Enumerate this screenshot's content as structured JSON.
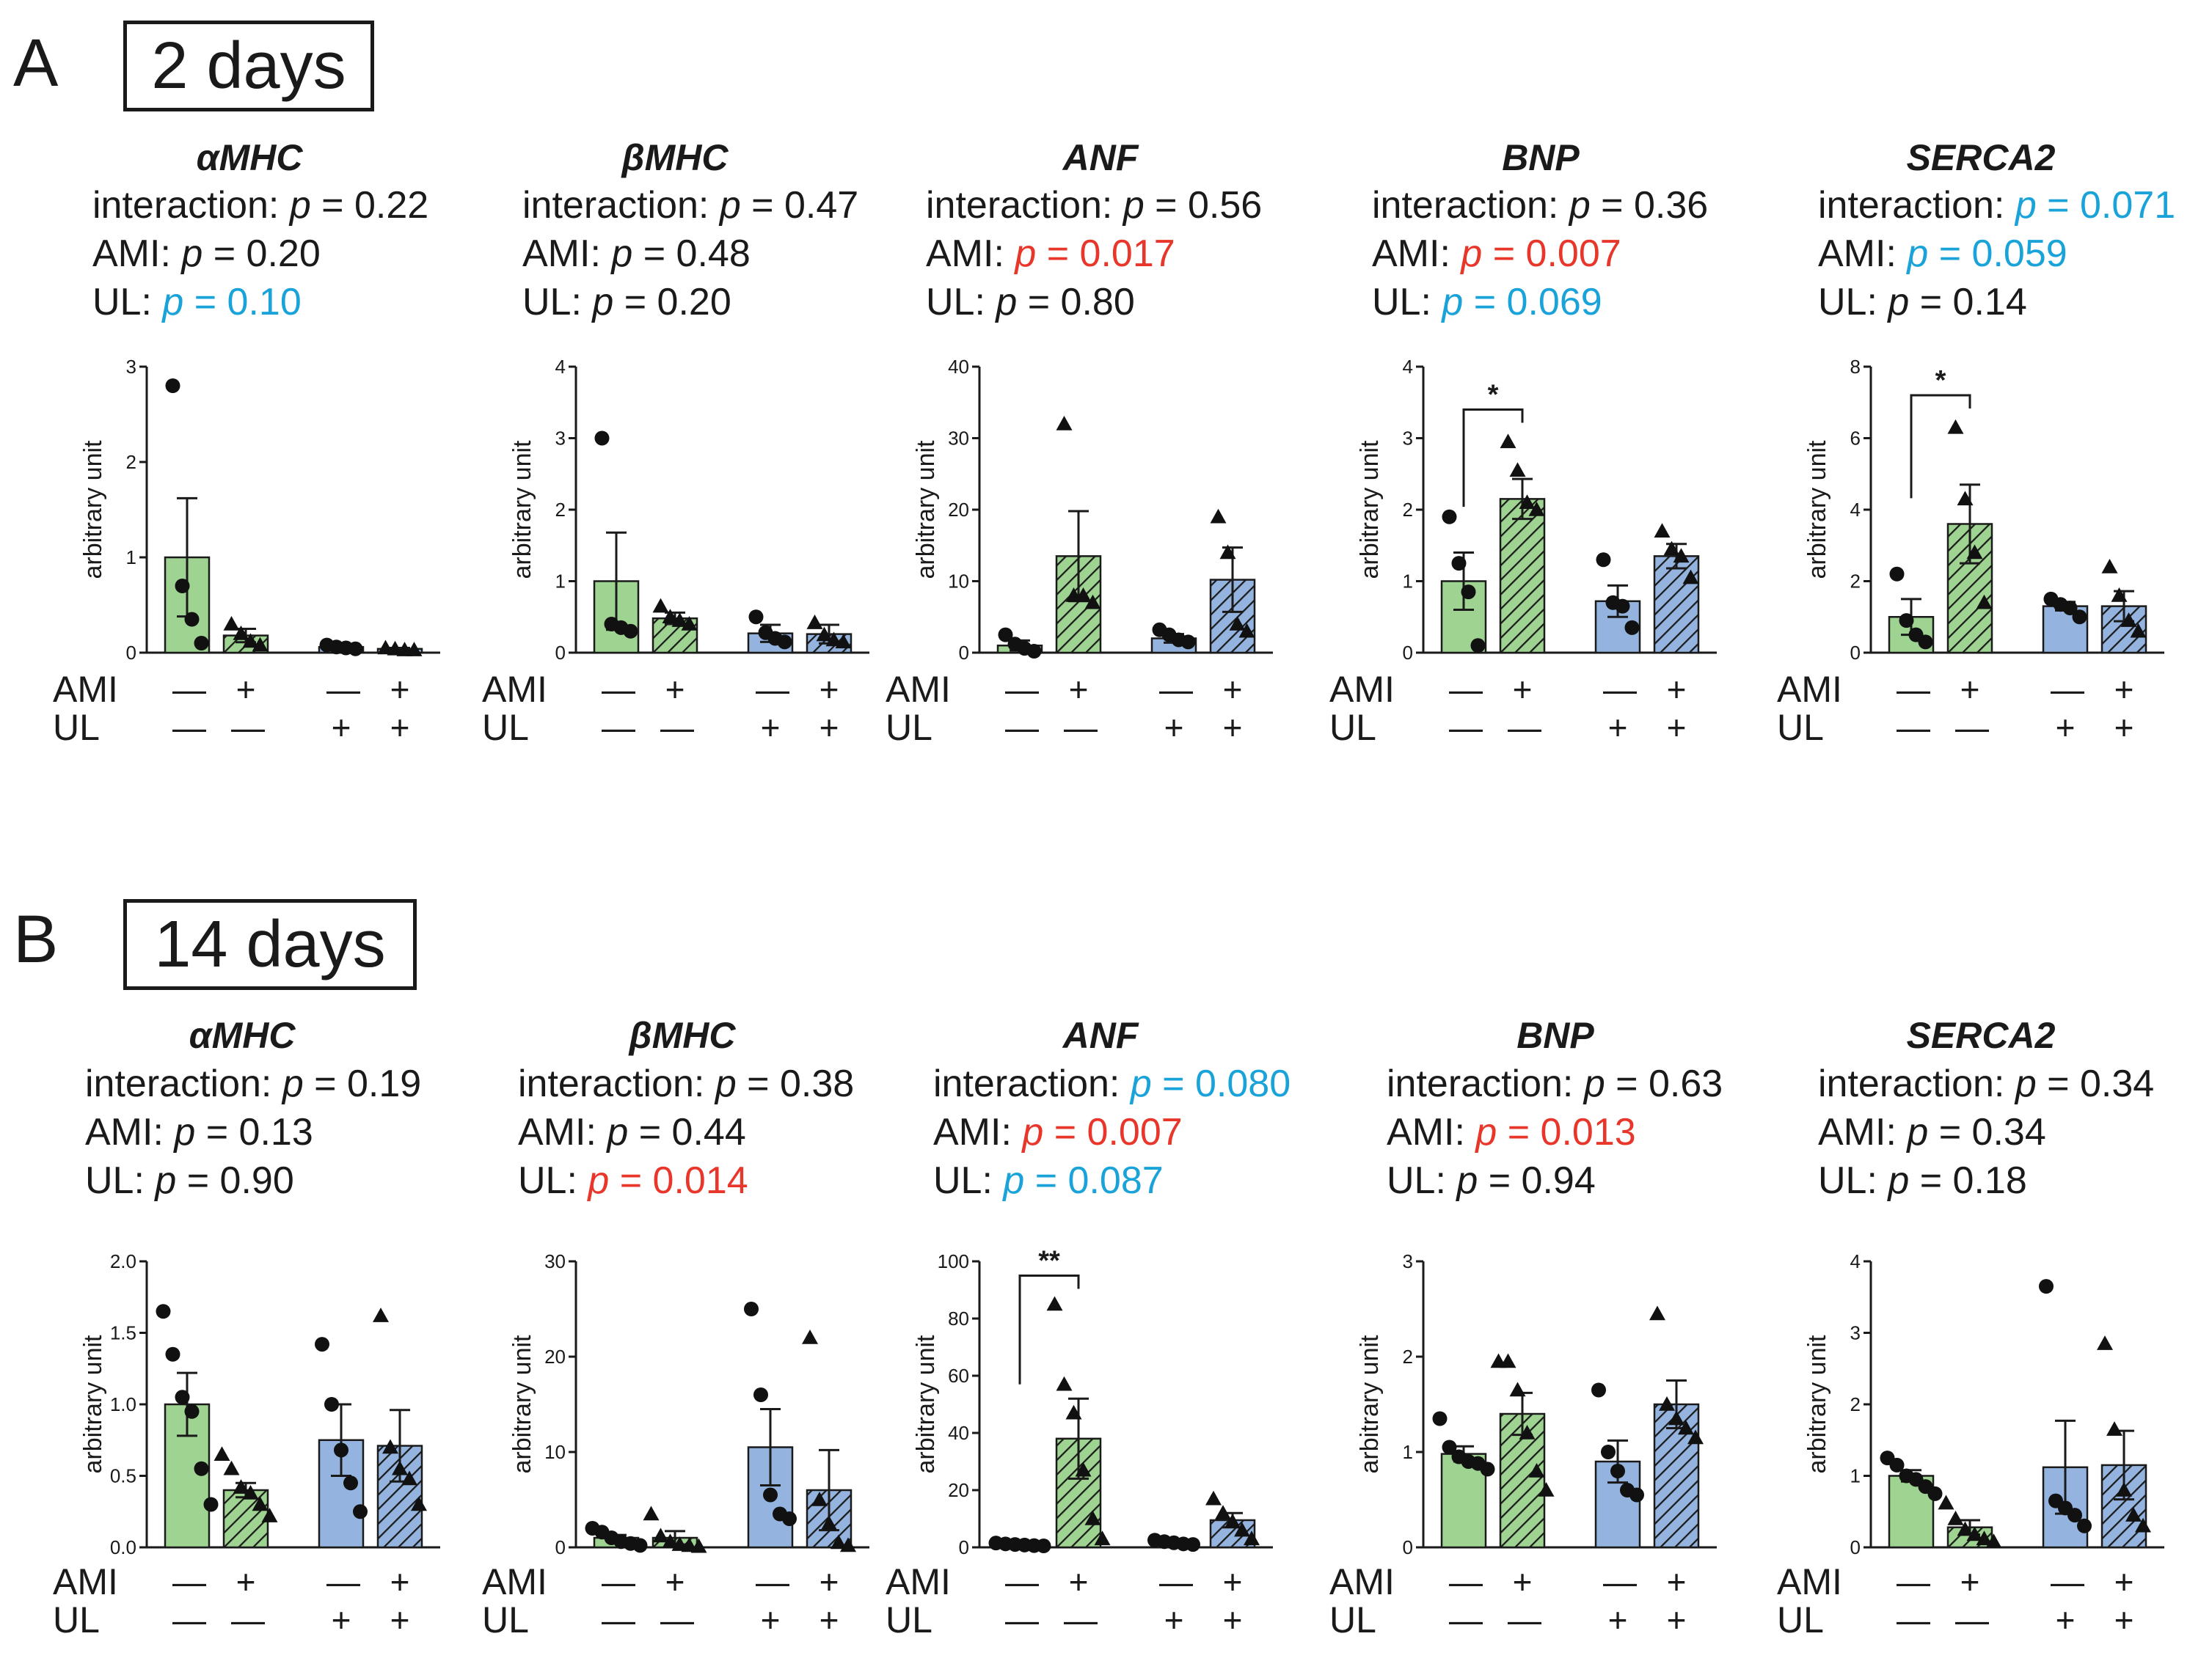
{
  "colors": {
    "green": "#9fd391",
    "blue": "#94b4df",
    "axis": "#1a1a1a",
    "red": "#e8372a",
    "cyan": "#1aa3d9"
  },
  "factor_labels": {
    "ami": "AMI",
    "ul": "UL"
  },
  "signs": {
    "ami": [
      "—",
      "+",
      "—",
      "+"
    ],
    "ul": [
      "—",
      "—",
      "+",
      "+"
    ]
  },
  "panels": [
    {
      "letter": "A",
      "title": "2 days",
      "charts": [
        {
          "gene": "αMHC",
          "stats": [
            {
              "label": "interaction:",
              "p": "p = 0.22",
              "sig": "none"
            },
            {
              "label": "AMI:",
              "p": "p = 0.20",
              "sig": "none"
            },
            {
              "label": "UL:",
              "p": "p = 0.10",
              "sig": "trend"
            }
          ]
        },
        {
          "gene": "βMHC",
          "stats": [
            {
              "label": "interaction:",
              "p": "p = 0.47",
              "sig": "none"
            },
            {
              "label": "AMI:",
              "p": "p = 0.48",
              "sig": "none"
            },
            {
              "label": "UL:",
              "p": "p = 0.20",
              "sig": "none"
            }
          ]
        },
        {
          "gene": "ANF",
          "stats": [
            {
              "label": "interaction:",
              "p": "p = 0.56",
              "sig": "none"
            },
            {
              "label": "AMI:",
              "p": "p = 0.017",
              "sig": "significant"
            },
            {
              "label": "UL:",
              "p": "p = 0.80",
              "sig": "none"
            }
          ]
        },
        {
          "gene": "BNP",
          "stats": [
            {
              "label": "interaction:",
              "p": "p = 0.36",
              "sig": "none"
            },
            {
              "label": "AMI:",
              "p": "p = 0.007",
              "sig": "significant"
            },
            {
              "label": "UL:",
              "p": "p = 0.069",
              "sig": "trend"
            }
          ]
        },
        {
          "gene": "SERCA2",
          "stats": [
            {
              "label": "interaction:",
              "p": "p = 0.071",
              "sig": "trend"
            },
            {
              "label": "AMI:",
              "p": "p = 0.059",
              "sig": "trend"
            },
            {
              "label": "UL:",
              "p": "p = 0.14",
              "sig": "none"
            }
          ]
        }
      ]
    },
    {
      "letter": "B",
      "title": "14 days",
      "charts": [
        {
          "gene": "αMHC",
          "stats": [
            {
              "label": "interaction:",
              "p": "p = 0.19",
              "sig": "none"
            },
            {
              "label": "AMI:",
              "p": "p = 0.13",
              "sig": "none"
            },
            {
              "label": "UL:",
              "p": "p = 0.90",
              "sig": "none"
            }
          ]
        },
        {
          "gene": "βMHC",
          "stats": [
            {
              "label": "interaction:",
              "p": "p = 0.38",
              "sig": "none"
            },
            {
              "label": "AMI:",
              "p": "p = 0.44",
              "sig": "none"
            },
            {
              "label": "UL:",
              "p": "p = 0.014",
              "sig": "significant"
            }
          ]
        },
        {
          "gene": "ANF",
          "stats": [
            {
              "label": "interaction:",
              "p": "p = 0.080",
              "sig": "trend"
            },
            {
              "label": "AMI:",
              "p": "p = 0.007",
              "sig": "significant"
            },
            {
              "label": "UL:",
              "p": "p = 0.087",
              "sig": "trend"
            }
          ]
        },
        {
          "gene": "BNP",
          "stats": [
            {
              "label": "interaction:",
              "p": "p = 0.63",
              "sig": "none"
            },
            {
              "label": "AMI:",
              "p": "p = 0.013",
              "sig": "significant"
            },
            {
              "label": "UL:",
              "p": "p = 0.94",
              "sig": "none"
            }
          ]
        },
        {
          "gene": "SERCA2",
          "stats": [
            {
              "label": "interaction:",
              "p": "p = 0.34",
              "sig": "none"
            },
            {
              "label": "AMI:",
              "p": "p = 0.34",
              "sig": "none"
            },
            {
              "label": "UL:",
              "p": "p = 0.18",
              "sig": "none"
            }
          ]
        }
      ]
    }
  ],
  "chart_data": [
    {
      "type": "bar",
      "panel": "A 2 days",
      "title": "αMHC",
      "ylabel": "arbitrary unit",
      "ylim": [
        0,
        3
      ],
      "yticks": [
        "0",
        "1",
        "2",
        "3"
      ],
      "yticks_values": [
        0,
        1,
        2,
        3
      ],
      "groups": [
        {
          "mean": 1.0,
          "sem": 0.62,
          "points": [
            2.8,
            0.7,
            0.35,
            0.1
          ]
        },
        {
          "mean": 0.18,
          "sem": 0.07,
          "points": [
            0.3,
            0.2,
            0.12,
            0.08
          ]
        },
        {
          "mean": 0.06,
          "sem": 0.02,
          "points": [
            0.08,
            0.06,
            0.05,
            0.04
          ]
        },
        {
          "mean": 0.04,
          "sem": 0.01,
          "points": [
            0.05,
            0.04,
            0.03,
            0.03
          ]
        }
      ],
      "brackets": []
    },
    {
      "type": "bar",
      "panel": "A 2 days",
      "title": "βMHC",
      "ylabel": "arbitrary unit",
      "ylim": [
        0,
        4
      ],
      "yticks": [
        "0",
        "1",
        "2",
        "3",
        "4"
      ],
      "yticks_values": [
        0,
        1,
        2,
        3,
        4
      ],
      "groups": [
        {
          "mean": 1.0,
          "sem": 0.68,
          "points": [
            3.0,
            0.4,
            0.35,
            0.3
          ]
        },
        {
          "mean": 0.48,
          "sem": 0.08,
          "points": [
            0.65,
            0.5,
            0.45,
            0.4
          ]
        },
        {
          "mean": 0.27,
          "sem": 0.12,
          "points": [
            0.5,
            0.28,
            0.2,
            0.15
          ]
        },
        {
          "mean": 0.26,
          "sem": 0.13,
          "points": [
            0.42,
            0.25,
            0.18,
            0.15
          ]
        }
      ],
      "brackets": []
    },
    {
      "type": "bar",
      "panel": "A 2 days",
      "title": "ANF",
      "ylabel": "arbitrary unit",
      "ylim": [
        0,
        40
      ],
      "yticks": [
        "0",
        "10",
        "20",
        "30",
        "40"
      ],
      "yticks_values": [
        0,
        10,
        20,
        30,
        40
      ],
      "groups": [
        {
          "mean": 1.0,
          "sem": 0.7,
          "points": [
            2.5,
            1.2,
            0.6,
            0.2
          ]
        },
        {
          "mean": 13.5,
          "sem": 6.3,
          "points": [
            32,
            8,
            8,
            7
          ]
        },
        {
          "mean": 2.0,
          "sem": 0.6,
          "points": [
            3.2,
            2.5,
            1.8,
            1.5
          ]
        },
        {
          "mean": 10.2,
          "sem": 4.5,
          "points": [
            19,
            14,
            4,
            3
          ]
        }
      ],
      "brackets": []
    },
    {
      "type": "bar",
      "panel": "A 2 days",
      "title": "BNP",
      "ylabel": "arbitrary unit",
      "ylim": [
        0,
        4
      ],
      "yticks": [
        "0",
        "1",
        "2",
        "3",
        "4"
      ],
      "yticks_values": [
        0,
        1,
        2,
        3,
        4
      ],
      "groups": [
        {
          "mean": 1.0,
          "sem": 0.4,
          "points": [
            1.9,
            1.25,
            0.85,
            0.1
          ]
        },
        {
          "mean": 2.15,
          "sem": 0.28,
          "points": [
            2.95,
            2.55,
            2.1,
            2.0
          ]
        },
        {
          "mean": 0.72,
          "sem": 0.22,
          "points": [
            1.3,
            0.7,
            0.65,
            0.35
          ]
        },
        {
          "mean": 1.35,
          "sem": 0.17,
          "points": [
            1.7,
            1.45,
            1.35,
            1.05
          ]
        }
      ],
      "brackets": [
        {
          "from": 0,
          "to": 1,
          "label": "*",
          "y": 3.4
        }
      ]
    },
    {
      "type": "bar",
      "panel": "A 2 days",
      "title": "SERCA2",
      "ylabel": "arbitrary unit",
      "ylim": [
        0,
        8
      ],
      "yticks": [
        "0",
        "2",
        "4",
        "6",
        "8"
      ],
      "yticks_values": [
        0,
        2,
        4,
        6,
        8
      ],
      "groups": [
        {
          "mean": 1.0,
          "sem": 0.5,
          "points": [
            2.2,
            0.9,
            0.5,
            0.3
          ]
        },
        {
          "mean": 3.6,
          "sem": 1.1,
          "points": [
            6.3,
            4.3,
            2.8,
            1.4
          ]
        },
        {
          "mean": 1.3,
          "sem": 0.12,
          "points": [
            1.5,
            1.35,
            1.25,
            1.0
          ]
        },
        {
          "mean": 1.3,
          "sem": 0.42,
          "points": [
            2.4,
            1.6,
            0.9,
            0.6
          ]
        }
      ],
      "brackets": [
        {
          "from": 0,
          "to": 1,
          "label": "*",
          "y": 7.2
        }
      ]
    },
    {
      "type": "bar",
      "panel": "B 14 days",
      "title": "αMHC",
      "ylabel": "arbitrary unit",
      "ylim": [
        0,
        2.0
      ],
      "yticks": [
        "0.0",
        "0.5",
        "1.0",
        "1.5",
        "2.0"
      ],
      "yticks_values": [
        0,
        0.5,
        1.0,
        1.5,
        2.0
      ],
      "groups": [
        {
          "mean": 1.0,
          "sem": 0.22,
          "points": [
            1.65,
            1.35,
            1.05,
            0.95,
            0.55,
            0.3
          ]
        },
        {
          "mean": 0.4,
          "sem": 0.05,
          "points": [
            0.65,
            0.55,
            0.42,
            0.38,
            0.3,
            0.22
          ]
        },
        {
          "mean": 0.75,
          "sem": 0.25,
          "points": [
            1.42,
            1.0,
            0.68,
            0.45,
            0.25
          ]
        },
        {
          "mean": 0.71,
          "sem": 0.25,
          "points": [
            1.62,
            0.7,
            0.55,
            0.48,
            0.3
          ]
        }
      ],
      "brackets": []
    },
    {
      "type": "bar",
      "panel": "B 14 days",
      "title": "βMHC",
      "ylabel": "arbitrary unit",
      "ylim": [
        0,
        30
      ],
      "yticks": [
        "0",
        "10",
        "20",
        "30"
      ],
      "yticks_values": [
        0,
        10,
        20,
        30
      ],
      "groups": [
        {
          "mean": 1.0,
          "sem": 0.3,
          "points": [
            2.0,
            1.6,
            1.0,
            0.6,
            0.4,
            0.2
          ]
        },
        {
          "mean": 1.0,
          "sem": 0.7,
          "points": [
            3.5,
            1.2,
            0.6,
            0.3,
            0.2,
            0.1
          ]
        },
        {
          "mean": 10.5,
          "sem": 4.0,
          "points": [
            25,
            16,
            5.5,
            3.5,
            3.0
          ]
        },
        {
          "mean": 6.0,
          "sem": 4.2,
          "points": [
            22,
            5,
            2.5,
            0.5,
            0.2
          ]
        }
      ],
      "brackets": []
    },
    {
      "type": "bar",
      "panel": "B 14 days",
      "title": "ANF",
      "ylabel": "arbitrary unit",
      "ylim": [
        0,
        100
      ],
      "yticks": [
        "0",
        "20",
        "40",
        "60",
        "80",
        "100"
      ],
      "yticks_values": [
        0,
        20,
        40,
        60,
        80,
        100
      ],
      "groups": [
        {
          "mean": 1.0,
          "sem": 0.3,
          "points": [
            1.5,
            1.2,
            1.0,
            0.8,
            0.6,
            0.5
          ]
        },
        {
          "mean": 38,
          "sem": 14,
          "points": [
            85,
            57,
            47,
            27,
            10,
            3
          ]
        },
        {
          "mean": 1.6,
          "sem": 0.3,
          "points": [
            2.5,
            2.0,
            1.6,
            1.2,
            1.0
          ]
        },
        {
          "mean": 9.5,
          "sem": 2.5,
          "points": [
            17,
            12,
            9,
            6,
            3
          ]
        }
      ],
      "brackets": [
        {
          "from": 0,
          "to": 1,
          "label": "**",
          "y": 95
        }
      ]
    },
    {
      "type": "bar",
      "panel": "B 14 days",
      "title": "BNP",
      "ylabel": "arbitrary unit",
      "ylim": [
        0,
        3
      ],
      "yticks": [
        "0",
        "1",
        "2",
        "3"
      ],
      "yticks_values": [
        0,
        1,
        2,
        3
      ],
      "groups": [
        {
          "mean": 0.98,
          "sem": 0.08,
          "points": [
            1.35,
            1.05,
            0.95,
            0.9,
            0.88,
            0.82
          ]
        },
        {
          "mean": 1.4,
          "sem": 0.22,
          "points": [
            1.95,
            1.95,
            1.65,
            1.2,
            0.8,
            0.6
          ]
        },
        {
          "mean": 0.9,
          "sem": 0.22,
          "points": [
            1.65,
            1.0,
            0.8,
            0.6,
            0.55
          ]
        },
        {
          "mean": 1.5,
          "sem": 0.25,
          "points": [
            2.45,
            1.5,
            1.35,
            1.25,
            1.15
          ]
        }
      ],
      "brackets": []
    },
    {
      "type": "bar",
      "panel": "B 14 days",
      "title": "SERCA2",
      "ylabel": "arbitrary unit",
      "ylim": [
        0,
        4
      ],
      "yticks": [
        "0",
        "1",
        "2",
        "3",
        "4"
      ],
      "yticks_values": [
        0,
        1,
        2,
        3,
        4
      ],
      "groups": [
        {
          "mean": 1.0,
          "sem": 0.08,
          "points": [
            1.25,
            1.15,
            1.0,
            0.95,
            0.85,
            0.75
          ]
        },
        {
          "mean": 0.28,
          "sem": 0.1,
          "points": [
            0.62,
            0.4,
            0.25,
            0.18,
            0.12,
            0.08
          ]
        },
        {
          "mean": 1.12,
          "sem": 0.65,
          "points": [
            3.65,
            0.65,
            0.55,
            0.45,
            0.3
          ]
        },
        {
          "mean": 1.15,
          "sem": 0.48,
          "points": [
            2.85,
            1.65,
            0.8,
            0.45,
            0.3
          ]
        }
      ],
      "brackets": []
    }
  ]
}
